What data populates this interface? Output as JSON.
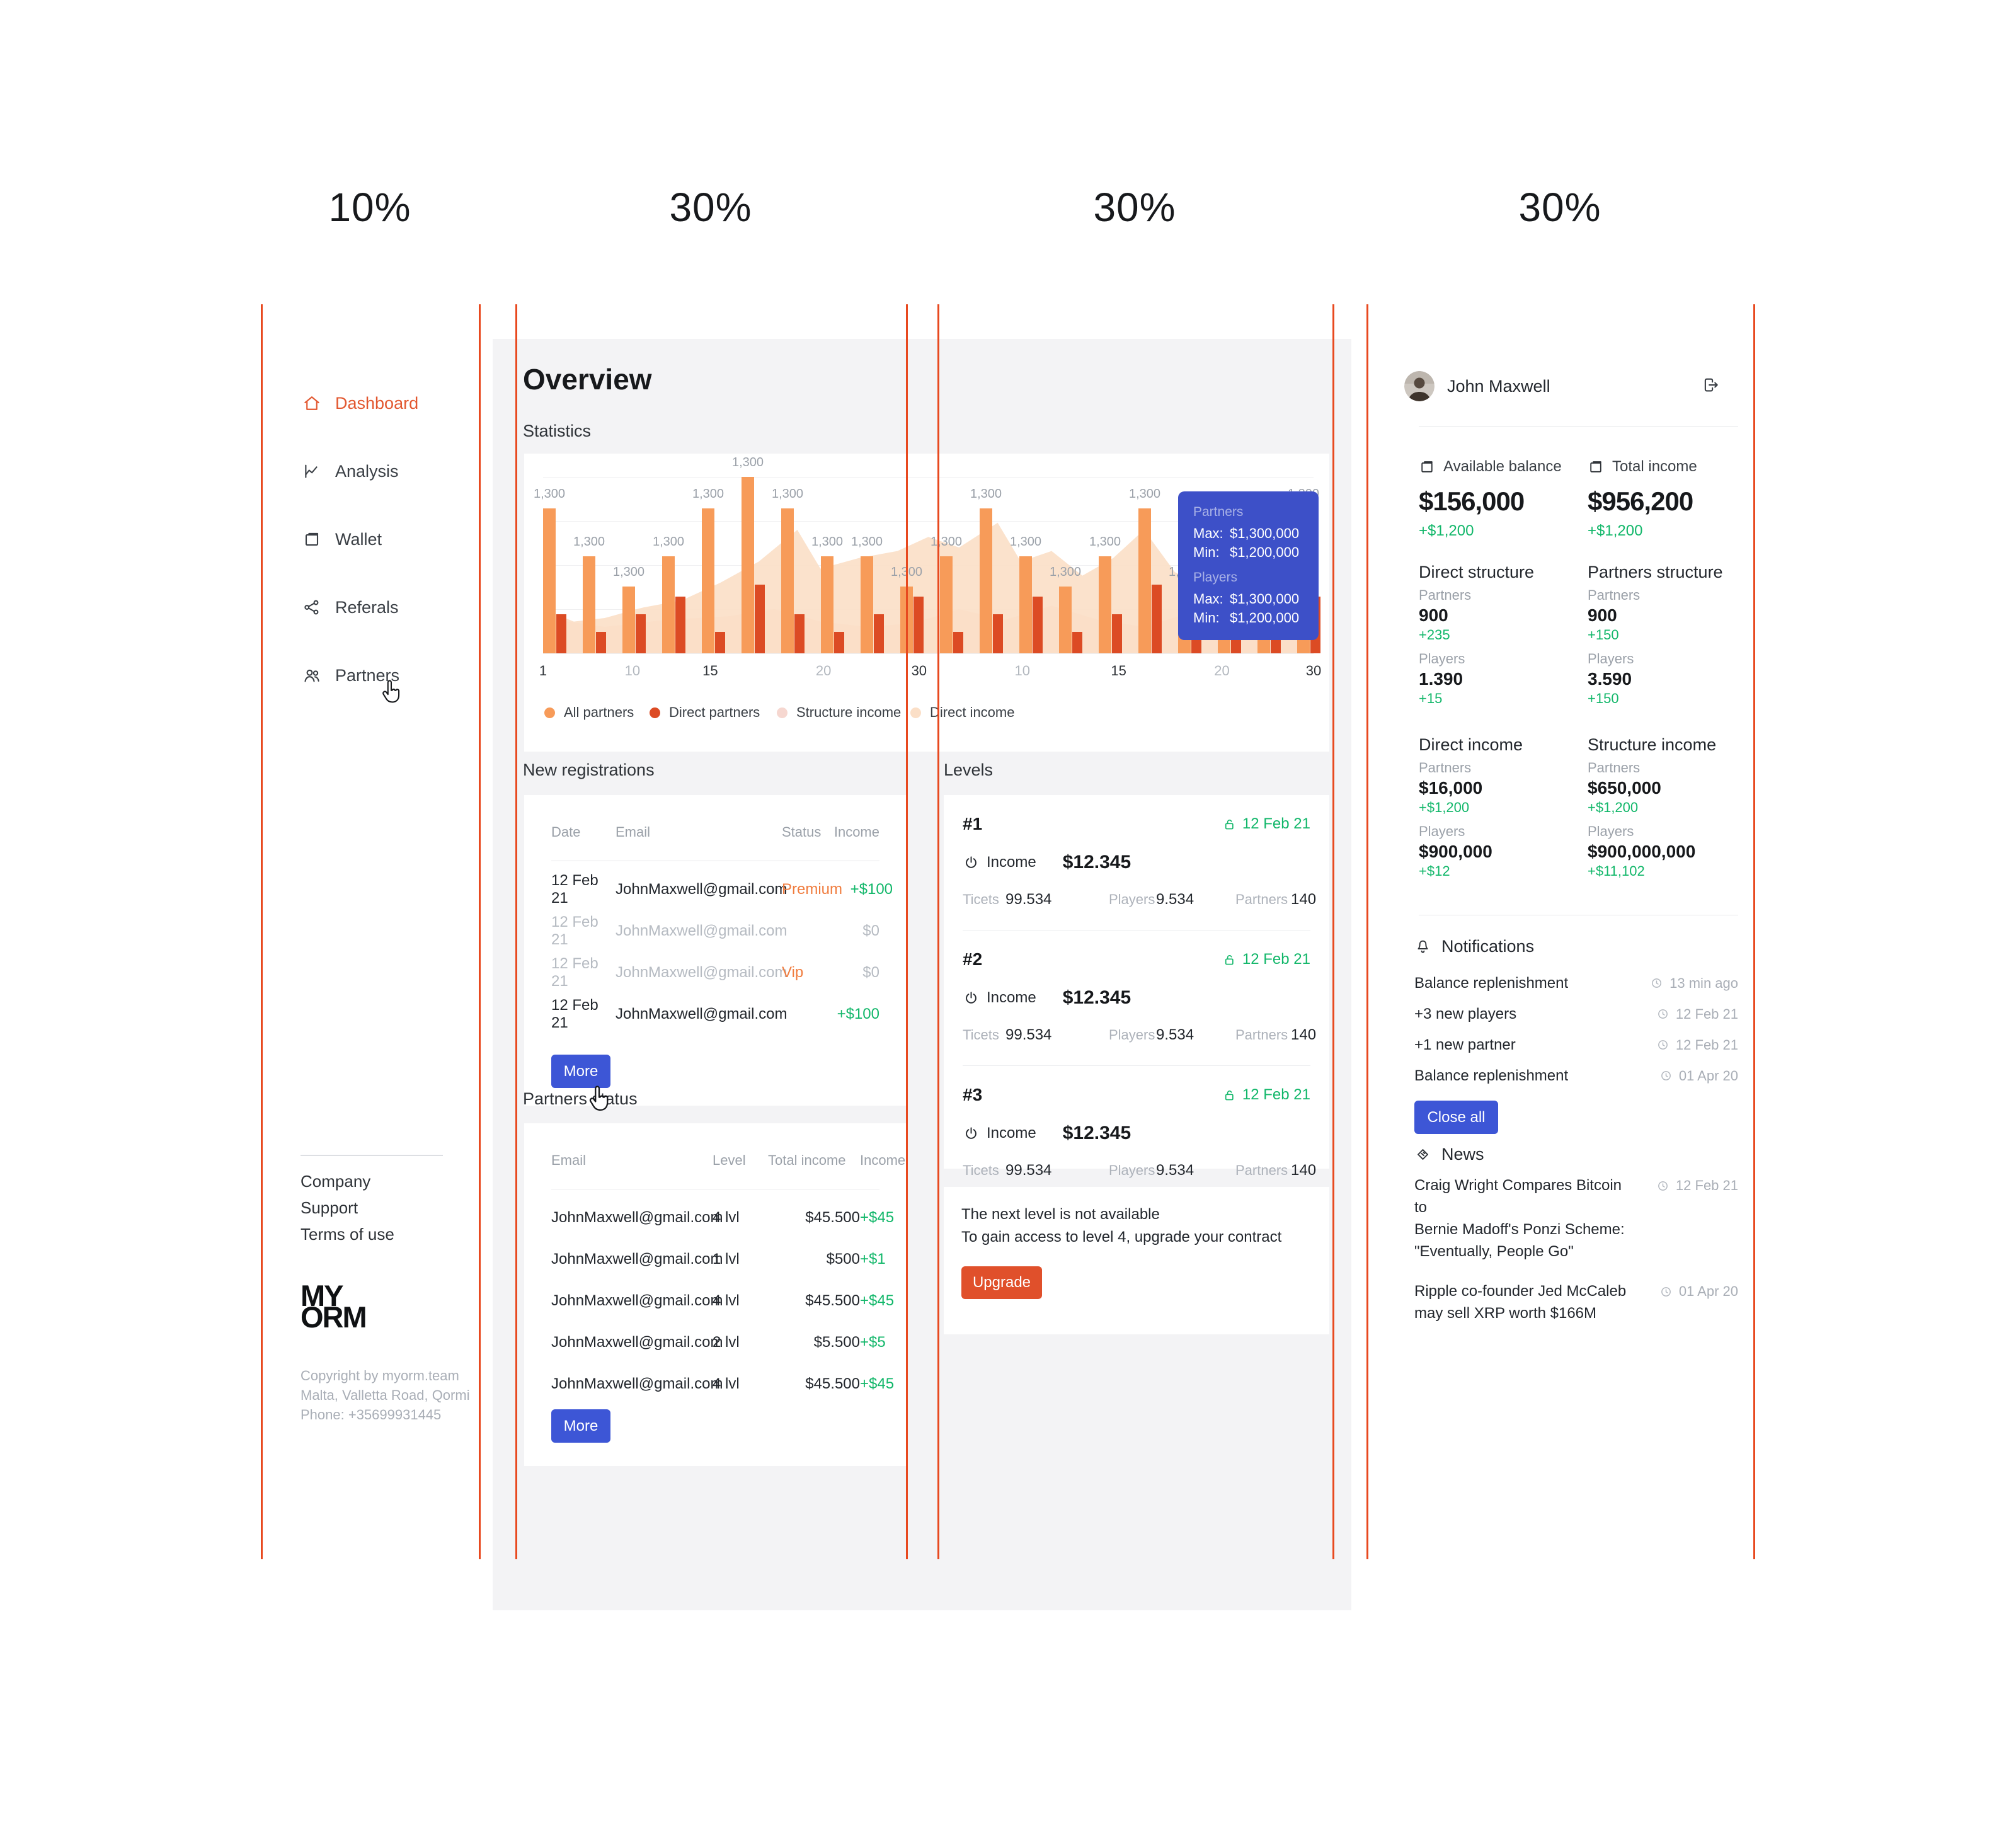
{
  "colors": {
    "guide": "#E8491F",
    "accent_orange": "#E2572F",
    "bar_orange": "#F79B59",
    "bar_red": "#DC4B24",
    "area_peach": "#FBDFC7",
    "area_pink": "#F6D7D0",
    "green": "#12B76A",
    "blue_button": "#3D56D6",
    "tooltip_blue": "#3D50C8",
    "status_orange": "#F07C3E",
    "content_bg": "#F3F3F5"
  },
  "guides": {
    "labels": [
      "10%",
      "30%",
      "30%",
      "30%"
    ]
  },
  "sidebar": {
    "menu": [
      {
        "label": "Dashboard",
        "icon": "home-icon",
        "active": true
      },
      {
        "label": "Analysis",
        "icon": "analysis-icon",
        "active": false
      },
      {
        "label": "Wallet",
        "icon": "wallet-icon",
        "active": false
      },
      {
        "label": "Referals",
        "icon": "referals-icon",
        "active": false
      },
      {
        "label": "Partners",
        "icon": "partners-icon",
        "active": false
      }
    ],
    "links": [
      "Company",
      "Support",
      "Terms of use"
    ],
    "logo_line1": "MY",
    "logo_line2": "ORM",
    "copyright": [
      "Copyright by myorm.team",
      "Malta, Valletta Road, Qormi",
      "Phone: +35699931445"
    ]
  },
  "main": {
    "title": "Overview",
    "statistics_label": "Statistics",
    "new_registrations": {
      "title": "New registrations",
      "headers": [
        "Date",
        "Email",
        "Status",
        "Income"
      ],
      "rows": [
        {
          "date": "12 Feb 21",
          "email": "JohnMaxwell@gmail.com",
          "status": "Premium",
          "income": "+$100",
          "muted": false,
          "positive": true
        },
        {
          "date": "12 Feb 21",
          "email": "JohnMaxwell@gmail.com",
          "status": "",
          "income": "$0",
          "muted": true,
          "positive": false
        },
        {
          "date": "12 Feb 21",
          "email": "JohnMaxwell@gmail.com",
          "status": "Vip",
          "income": "$0",
          "muted": true,
          "positive": false
        },
        {
          "date": "12 Feb 21",
          "email": "JohnMaxwell@gmail.com",
          "status": "",
          "income": "+$100",
          "muted": false,
          "positive": true
        }
      ],
      "more_label": "More"
    },
    "partners_status": {
      "title": "Partners status",
      "headers": [
        "Email",
        "Level",
        "Total income",
        "Income"
      ],
      "rows": [
        {
          "email": "JohnMaxwell@gmail.com",
          "level": "4 lvl",
          "total": "$45.500",
          "income": "+$45"
        },
        {
          "email": "JohnMaxwell@gmail.com",
          "level": "1 lvl",
          "total": "$500",
          "income": "+$1"
        },
        {
          "email": "JohnMaxwell@gmail.com",
          "level": "4 lvl",
          "total": "$45.500",
          "income": "+$45"
        },
        {
          "email": "JohnMaxwell@gmail.com",
          "level": "2 lvl",
          "total": "$5.500",
          "income": "+$5"
        },
        {
          "email": "JohnMaxwell@gmail.com",
          "level": "4 lvl",
          "total": "$45.500",
          "income": "+$45"
        }
      ],
      "more_label": "More"
    }
  },
  "levels": {
    "title": "Levels",
    "items": [
      {
        "rank": "#1",
        "date": "12 Feb 21",
        "income_label": "Income",
        "income": "$12.345",
        "stats": [
          {
            "label": "Ticets",
            "value": "99.534"
          },
          {
            "label": "Players",
            "value": "9.534"
          },
          {
            "label": "Partners",
            "value": "140"
          }
        ]
      },
      {
        "rank": "#2",
        "date": "12 Feb 21",
        "income_label": "Income",
        "income": "$12.345",
        "stats": [
          {
            "label": "Ticets",
            "value": "99.534"
          },
          {
            "label": "Players",
            "value": "9.534"
          },
          {
            "label": "Partners",
            "value": "140"
          }
        ]
      },
      {
        "rank": "#3",
        "date": "12 Feb 21",
        "income_label": "Income",
        "income": "$12.345",
        "stats": [
          {
            "label": "Ticets",
            "value": "99.534"
          },
          {
            "label": "Players",
            "value": "9.534"
          },
          {
            "label": "Partners",
            "value": "140"
          }
        ]
      }
    ],
    "notice_line1": "The next level is not available",
    "notice_line2": "To gain access to level 4, upgrade your contract",
    "upgrade_label": "Upgrade"
  },
  "profile": {
    "name": "John Maxwell",
    "balances": [
      {
        "icon": "wallet-icon",
        "label": "Available balance",
        "value": "$156,000",
        "delta": "+$1,200"
      },
      {
        "icon": "wallet-icon",
        "label": "Total income",
        "value": "$956,200",
        "delta": "+$1,200"
      }
    ],
    "stat_blocks": [
      {
        "title": "Direct structure",
        "stats": [
          {
            "label": "Partners",
            "value": "900",
            "delta": "+235"
          },
          {
            "label": "Players",
            "value": "1.390",
            "delta": "+15"
          }
        ]
      },
      {
        "title": "Partners structure",
        "stats": [
          {
            "label": "Partners",
            "value": "900",
            "delta": "+150"
          },
          {
            "label": "Players",
            "value": "3.590",
            "delta": "+150"
          }
        ]
      },
      {
        "title": "Direct income",
        "stats": [
          {
            "label": "Partners",
            "value": "$16,000",
            "delta": "+$1,200"
          },
          {
            "label": "Players",
            "value": "$900,000",
            "delta": "+$12"
          }
        ]
      },
      {
        "title": "Structure income",
        "stats": [
          {
            "label": "Partners",
            "value": "$650,000",
            "delta": "+$1,200"
          },
          {
            "label": "Players",
            "value": "$900,000,000",
            "delta": "+$11,102"
          }
        ]
      }
    ],
    "notifications": {
      "title": "Notifications",
      "items": [
        {
          "text": "Balance replenishment",
          "time": "13 min ago"
        },
        {
          "text": "+3 new players",
          "time": "12 Feb 21"
        },
        {
          "text": "+1 new partner",
          "time": "12 Feb 21"
        },
        {
          "text": "Balance replenishment",
          "time": "01 Apr 20"
        }
      ],
      "close_label": "Close all"
    },
    "news": {
      "title": "News",
      "items": [
        {
          "lines": [
            "Craig Wright Compares Bitcoin to",
            "Bernie Madoff's Ponzi Scheme:",
            "\"Eventually, People Go\""
          ],
          "time": "12 Feb 21"
        },
        {
          "lines": [
            "Ripple co-founder Jed McCaleb",
            "may sell XRP worth $166M"
          ],
          "time": "01 Apr 20"
        }
      ]
    }
  },
  "chart_data": {
    "type": "bar",
    "title": "Statistics",
    "ylim": [
      0,
      1400
    ],
    "grid": true,
    "legend_position": "bottom",
    "bar_value_label": "1,300",
    "x_ticks": [
      {
        "label": "1",
        "pos_pct": 0,
        "muted": false
      },
      {
        "label": "10",
        "pos_pct": 11.6,
        "muted": true
      },
      {
        "label": "15",
        "pos_pct": 21.7,
        "muted": false
      },
      {
        "label": "20",
        "pos_pct": 36.4,
        "muted": true
      },
      {
        "label": "30",
        "pos_pct": 48.8,
        "muted": false
      },
      {
        "label": "10",
        "pos_pct": 62.2,
        "muted": true
      },
      {
        "label": "15",
        "pos_pct": 74.7,
        "muted": false
      },
      {
        "label": "20",
        "pos_pct": 88.1,
        "muted": true
      },
      {
        "label": "30",
        "pos_pct": 100,
        "muted": false
      }
    ],
    "series": [
      {
        "name": "All partners",
        "kind": "bar",
        "color": "#F79B59",
        "heights_pct": [
          82,
          55,
          38,
          55,
          82,
          100,
          82,
          55,
          55,
          38,
          55,
          82,
          55,
          38,
          55,
          82,
          38,
          55,
          55,
          82
        ]
      },
      {
        "name": "Direct partners",
        "kind": "bar",
        "color": "#DC4B24",
        "heights_pct": [
          22,
          12,
          22,
          32,
          12,
          39,
          22,
          12,
          22,
          32,
          12,
          22,
          32,
          12,
          22,
          39,
          12,
          22,
          22,
          32
        ]
      },
      {
        "name": "Structure income",
        "kind": "area",
        "color": "#F6D7D0",
        "points_pct": [
          [
            0,
            20
          ],
          [
            8,
            15
          ],
          [
            16,
            19
          ],
          [
            24,
            21
          ],
          [
            30,
            25
          ],
          [
            36,
            18
          ],
          [
            42,
            15
          ],
          [
            48,
            17
          ],
          [
            54,
            25
          ],
          [
            60,
            19
          ],
          [
            66,
            27
          ],
          [
            72,
            19
          ],
          [
            78,
            15
          ],
          [
            84,
            23
          ],
          [
            90,
            17
          ],
          [
            95,
            21
          ],
          [
            100,
            28
          ]
        ]
      },
      {
        "name": "Direct income",
        "kind": "area",
        "color": "#FBDFC7",
        "points_pct": [
          [
            0,
            25
          ],
          [
            4,
            18
          ],
          [
            8,
            20
          ],
          [
            13,
            26
          ],
          [
            18,
            30
          ],
          [
            23,
            40
          ],
          [
            28,
            52
          ],
          [
            33,
            70
          ],
          [
            36,
            48
          ],
          [
            41,
            54
          ],
          [
            46,
            58
          ],
          [
            50,
            66
          ],
          [
            54,
            60
          ],
          [
            59,
            74
          ],
          [
            62,
            52
          ],
          [
            66,
            58
          ],
          [
            70,
            44
          ],
          [
            74,
            54
          ],
          [
            78,
            70
          ],
          [
            82,
            46
          ],
          [
            86,
            38
          ],
          [
            90,
            50
          ],
          [
            95,
            40
          ],
          [
            100,
            46
          ]
        ]
      }
    ],
    "tooltip": {
      "sections": [
        {
          "label": "Partners",
          "rows": [
            [
              "Max:",
              "$1,300,000"
            ],
            [
              "Min:",
              "$1,200,000"
            ]
          ]
        },
        {
          "label": "Players",
          "rows": [
            [
              "Max:",
              "$1,300,000"
            ],
            [
              "Min:",
              "$1,200,000"
            ]
          ]
        }
      ]
    }
  }
}
